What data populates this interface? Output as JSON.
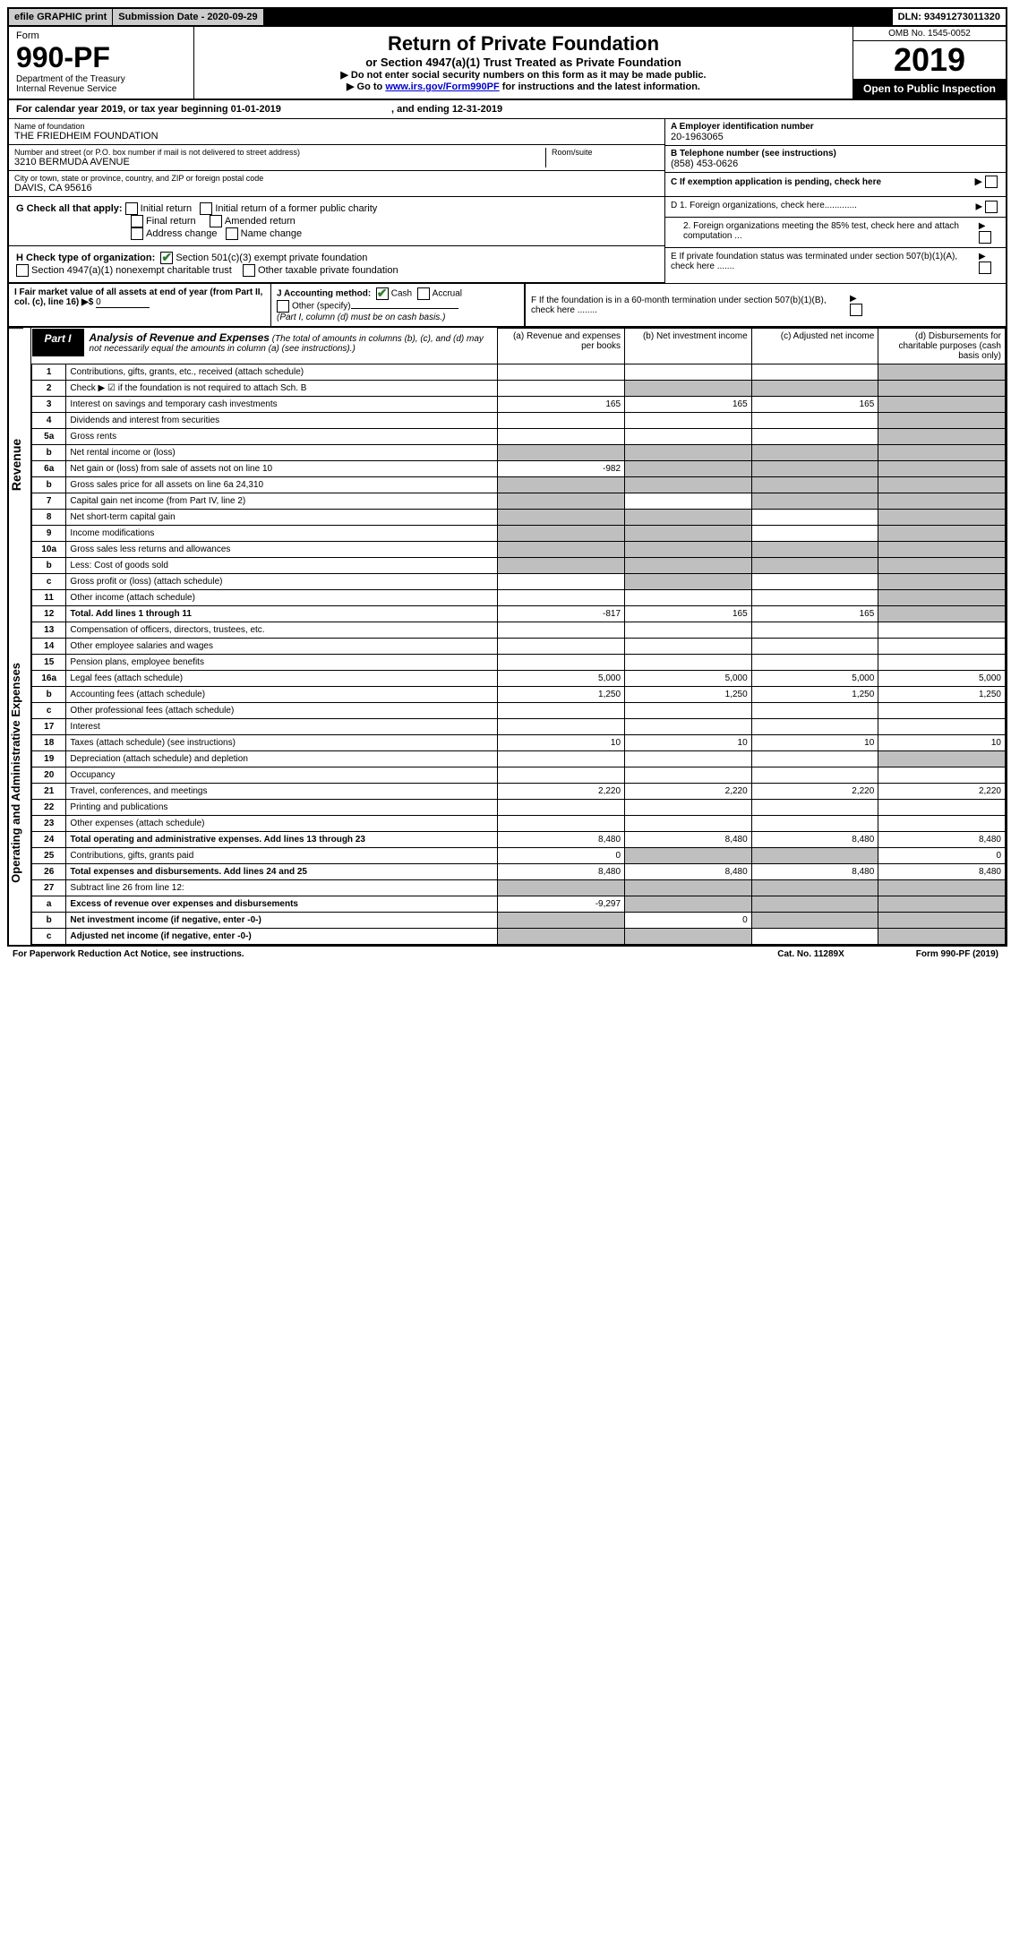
{
  "topbar": {
    "efile": "efile GRAPHIC print",
    "subdate_label": "Submission Date - 2020-09-29",
    "dln": "DLN: 93491273011320"
  },
  "header": {
    "form": "Form",
    "formnum": "990-PF",
    "dept": "Department of the Treasury\nInternal Revenue Service",
    "title": "Return of Private Foundation",
    "subtitle": "or Section 4947(a)(1) Trust Treated as Private Foundation",
    "instr1": "▶ Do not enter social security numbers on this form as it may be made public.",
    "instr2": "▶ Go to ",
    "instr_link": "www.irs.gov/Form990PF",
    "instr3": " for instructions and the latest information.",
    "omb": "OMB No. 1545-0052",
    "year": "2019",
    "open": "Open to Public Inspection"
  },
  "calyear": "For calendar year 2019, or tax year beginning 01-01-2019",
  "calyear_end": ", and ending 12-31-2019",
  "foundation": {
    "name_label": "Name of foundation",
    "name": "THE FRIEDHEIM FOUNDATION",
    "addr_label": "Number and street (or P.O. box number if mail is not delivered to street address)",
    "addr": "3210 BERMUDA AVENUE",
    "room_label": "Room/suite",
    "city_label": "City or town, state or province, country, and ZIP or foreign postal code",
    "city": "DAVIS, CA  95616"
  },
  "rightinfo": {
    "a_label": "A Employer identification number",
    "a_val": "20-1963065",
    "b_label": "B Telephone number (see instructions)",
    "b_val": "(858) 453-0626",
    "c_label": "C If exemption application is pending, check here",
    "d1": "D 1. Foreign organizations, check here.............",
    "d2": "2. Foreign organizations meeting the 85% test, check here and attach computation ...",
    "e": "E  If private foundation status was terminated under section 507(b)(1)(A), check here .......",
    "f": "F  If the foundation is in a 60-month termination under section 507(b)(1)(B), check here ........"
  },
  "g": {
    "label": "G Check all that apply:",
    "opts": [
      "Initial return",
      "Initial return of a former public charity",
      "Final return",
      "Amended return",
      "Address change",
      "Name change"
    ]
  },
  "h": {
    "label": "H Check type of organization:",
    "opt1": "Section 501(c)(3) exempt private foundation",
    "opt2": "Section 4947(a)(1) nonexempt charitable trust",
    "opt3": "Other taxable private foundation"
  },
  "i": {
    "label": "I Fair market value of all assets at end of year (from Part II, col. (c), line 16) ▶$ ",
    "val": "0"
  },
  "j": {
    "label": "J Accounting method:",
    "cash": "Cash",
    "accrual": "Accrual",
    "other": "Other (specify)",
    "note": "(Part I, column (d) must be on cash basis.)"
  },
  "part1": {
    "label": "Part I",
    "title": "Analysis of Revenue and Expenses",
    "note": "(The total of amounts in columns (b), (c), and (d) may not necessarily equal the amounts in column (a) (see instructions).)",
    "cols": {
      "a": "(a)   Revenue and expenses per books",
      "b": "(b)  Net investment income",
      "c": "(c)  Adjusted net income",
      "d": "(d)  Disbursements for charitable purposes (cash basis only)"
    }
  },
  "sides": {
    "revenue": "Revenue",
    "expenses": "Operating and Administrative Expenses"
  },
  "rows": [
    {
      "n": "1",
      "desc": "Contributions, gifts, grants, etc., received (attach schedule)",
      "a": "",
      "b": "",
      "c": "",
      "d": "",
      "d_shade": true
    },
    {
      "n": "2",
      "desc": "Check ▶ ☑ if the foundation is not required to attach Sch. B",
      "a": "",
      "b": "",
      "c": "",
      "d": "",
      "d_shade": true,
      "b_shade": true,
      "c_shade": true
    },
    {
      "n": "3",
      "desc": "Interest on savings and temporary cash investments",
      "a": "165",
      "b": "165",
      "c": "165",
      "d": "",
      "d_shade": true
    },
    {
      "n": "4",
      "desc": "Dividends and interest from securities",
      "a": "",
      "b": "",
      "c": "",
      "d": "",
      "d_shade": true
    },
    {
      "n": "5a",
      "desc": "Gross rents",
      "a": "",
      "b": "",
      "c": "",
      "d": "",
      "d_shade": true
    },
    {
      "n": "b",
      "desc": "Net rental income or (loss)",
      "a": "",
      "b": "",
      "c": "",
      "d": "",
      "d_shade": true,
      "b_shade": true,
      "c_shade": true,
      "a_shade": true
    },
    {
      "n": "6a",
      "desc": "Net gain or (loss) from sale of assets not on line 10",
      "a": "-982",
      "b": "",
      "c": "",
      "d": "",
      "d_shade": true,
      "b_shade": true,
      "c_shade": true
    },
    {
      "n": "b",
      "desc": "Gross sales price for all assets on line 6a           24,310",
      "a": "",
      "b": "",
      "c": "",
      "d": "",
      "d_shade": true,
      "b_shade": true,
      "c_shade": true,
      "a_shade": true
    },
    {
      "n": "7",
      "desc": "Capital gain net income (from Part IV, line 2)",
      "a": "",
      "b": "",
      "c": "",
      "d": "",
      "d_shade": true,
      "a_shade": true,
      "c_shade": true
    },
    {
      "n": "8",
      "desc": "Net short-term capital gain",
      "a": "",
      "b": "",
      "c": "",
      "d": "",
      "d_shade": true,
      "a_shade": true,
      "b_shade": true
    },
    {
      "n": "9",
      "desc": "Income modifications",
      "a": "",
      "b": "",
      "c": "",
      "d": "",
      "d_shade": true,
      "a_shade": true,
      "b_shade": true
    },
    {
      "n": "10a",
      "desc": "Gross sales less returns and allowances",
      "a": "",
      "b": "",
      "c": "",
      "d": "",
      "d_shade": true,
      "a_shade": true,
      "b_shade": true,
      "c_shade": true
    },
    {
      "n": "b",
      "desc": "Less: Cost of goods sold",
      "a": "",
      "b": "",
      "c": "",
      "d": "",
      "d_shade": true,
      "a_shade": true,
      "b_shade": true,
      "c_shade": true
    },
    {
      "n": "c",
      "desc": "Gross profit or (loss) (attach schedule)",
      "a": "",
      "b": "",
      "c": "",
      "d": "",
      "d_shade": true,
      "b_shade": true
    },
    {
      "n": "11",
      "desc": "Other income (attach schedule)",
      "a": "",
      "b": "",
      "c": "",
      "d": "",
      "d_shade": true
    },
    {
      "n": "12",
      "desc": "Total. Add lines 1 through 11",
      "a": "-817",
      "b": "165",
      "c": "165",
      "d": "",
      "d_shade": true,
      "bold": true
    },
    {
      "n": "13",
      "desc": "Compensation of officers, directors, trustees, etc.",
      "a": "",
      "b": "",
      "c": "",
      "d": ""
    },
    {
      "n": "14",
      "desc": "Other employee salaries and wages",
      "a": "",
      "b": "",
      "c": "",
      "d": ""
    },
    {
      "n": "15",
      "desc": "Pension plans, employee benefits",
      "a": "",
      "b": "",
      "c": "",
      "d": ""
    },
    {
      "n": "16a",
      "desc": "Legal fees (attach schedule)",
      "a": "5,000",
      "b": "5,000",
      "c": "5,000",
      "d": "5,000"
    },
    {
      "n": "b",
      "desc": "Accounting fees (attach schedule)",
      "a": "1,250",
      "b": "1,250",
      "c": "1,250",
      "d": "1,250"
    },
    {
      "n": "c",
      "desc": "Other professional fees (attach schedule)",
      "a": "",
      "b": "",
      "c": "",
      "d": ""
    },
    {
      "n": "17",
      "desc": "Interest",
      "a": "",
      "b": "",
      "c": "",
      "d": ""
    },
    {
      "n": "18",
      "desc": "Taxes (attach schedule) (see instructions)",
      "a": "10",
      "b": "10",
      "c": "10",
      "d": "10"
    },
    {
      "n": "19",
      "desc": "Depreciation (attach schedule) and depletion",
      "a": "",
      "b": "",
      "c": "",
      "d": "",
      "d_shade": true
    },
    {
      "n": "20",
      "desc": "Occupancy",
      "a": "",
      "b": "",
      "c": "",
      "d": ""
    },
    {
      "n": "21",
      "desc": "Travel, conferences, and meetings",
      "a": "2,220",
      "b": "2,220",
      "c": "2,220",
      "d": "2,220"
    },
    {
      "n": "22",
      "desc": "Printing and publications",
      "a": "",
      "b": "",
      "c": "",
      "d": ""
    },
    {
      "n": "23",
      "desc": "Other expenses (attach schedule)",
      "a": "",
      "b": "",
      "c": "",
      "d": ""
    },
    {
      "n": "24",
      "desc": "Total operating and administrative expenses. Add lines 13 through 23",
      "a": "8,480",
      "b": "8,480",
      "c": "8,480",
      "d": "8,480",
      "bold": true
    },
    {
      "n": "25",
      "desc": "Contributions, gifts, grants paid",
      "a": "0",
      "b": "",
      "c": "",
      "d": "0",
      "b_shade": true,
      "c_shade": true
    },
    {
      "n": "26",
      "desc": "Total expenses and disbursements. Add lines 24 and 25",
      "a": "8,480",
      "b": "8,480",
      "c": "8,480",
      "d": "8,480",
      "bold": true
    },
    {
      "n": "27",
      "desc": "Subtract line 26 from line 12:",
      "a": "",
      "b": "",
      "c": "",
      "d": "",
      "a_shade": true,
      "b_shade": true,
      "c_shade": true,
      "d_shade": true
    },
    {
      "n": "a",
      "desc": "Excess of revenue over expenses and disbursements",
      "a": "-9,297",
      "b": "",
      "c": "",
      "d": "",
      "b_shade": true,
      "c_shade": true,
      "d_shade": true,
      "bold": true
    },
    {
      "n": "b",
      "desc": "Net investment income (if negative, enter -0-)",
      "a": "",
      "b": "0",
      "c": "",
      "d": "",
      "a_shade": true,
      "c_shade": true,
      "d_shade": true,
      "bold": true
    },
    {
      "n": "c",
      "desc": "Adjusted net income (if negative, enter -0-)",
      "a": "",
      "b": "",
      "c": "",
      "d": "",
      "a_shade": true,
      "b_shade": true,
      "d_shade": true,
      "bold": true
    }
  ],
  "footer": {
    "left": "For Paperwork Reduction Act Notice, see instructions.",
    "cat": "Cat. No. 11289X",
    "right": "Form 990-PF (2019)"
  }
}
